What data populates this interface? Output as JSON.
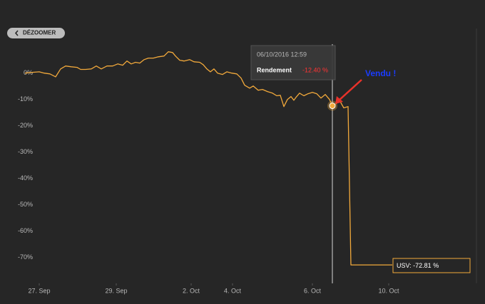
{
  "chart_data": {
    "type": "line",
    "button": "DÉZOOMER",
    "xlim": [
      0,
      126
    ],
    "ylim": [
      -79,
      11
    ],
    "xticks": [
      {
        "value": 4,
        "label": "27. Sep"
      },
      {
        "value": 25.6,
        "label": "29. Sep"
      },
      {
        "value": 46.6,
        "label": "2. Oct"
      },
      {
        "value": 58.2,
        "label": "4. Oct"
      },
      {
        "value": 80.6,
        "label": "6. Oct"
      },
      {
        "value": 102,
        "label": "10. Oct"
      }
    ],
    "yticks": [
      {
        "value": 0,
        "label": "0%"
      },
      {
        "value": -10,
        "label": "-10%"
      },
      {
        "value": -20,
        "label": "-20%"
      },
      {
        "value": -30,
        "label": "-30%"
      },
      {
        "value": -40,
        "label": "-40%"
      },
      {
        "value": -50,
        "label": "-50%"
      },
      {
        "value": -60,
        "label": "-60%"
      },
      {
        "value": -70,
        "label": "-70%"
      }
    ],
    "grid": false,
    "x": [
      0,
      2,
      4,
      5.4,
      7,
      8.6,
      10,
      11.4,
      13,
      14.6,
      15.6,
      17,
      18.6,
      20,
      21.4,
      23,
      24.6,
      26,
      27.4,
      28.6,
      29.8,
      31,
      32.2,
      33.4,
      34.6,
      36,
      37.4,
      39,
      40.2,
      41.4,
      42.2,
      43.4,
      44.6,
      46.2,
      47.4,
      49,
      50,
      51,
      52,
      53,
      54,
      55.4,
      56.6,
      58,
      59.4,
      60.6,
      61.6,
      63,
      64,
      65.4,
      66.6,
      68,
      69.4,
      70.6,
      71.6,
      72.6,
      73.6,
      74.6,
      75.4,
      76,
      77,
      78.2,
      79.4,
      80.6,
      81.8,
      83,
      84.2,
      85.4,
      86.2,
      87.4,
      88.4,
      89.4,
      90.6,
      91.4,
      103
    ],
    "series": [
      {
        "name": "USV",
        "color": "#f2a93b",
        "values": [
          0,
          0.3,
          0.5,
          0,
          -0.3,
          -1.4,
          1.6,
          2.7,
          2.4,
          2.2,
          1.4,
          1.4,
          1.6,
          2.7,
          1.6,
          2.7,
          2.7,
          3.5,
          3.0,
          4.6,
          3.5,
          4.1,
          3.8,
          5.1,
          5.7,
          5.7,
          6.2,
          6.5,
          8.1,
          7.8,
          6.5,
          4.9,
          4.6,
          5.1,
          4.3,
          4.1,
          3.2,
          1.6,
          0.5,
          1.6,
          0,
          -0.5,
          0.5,
          0,
          -0.3,
          -1.9,
          -4.6,
          -5.7,
          -4.9,
          -6.5,
          -6.2,
          -7.0,
          -7.6,
          -8.6,
          -8.4,
          -12.7,
          -10.0,
          -8.9,
          -10.3,
          -9.2,
          -7.6,
          -8.6,
          -7.8,
          -7.3,
          -7.8,
          -9.5,
          -8.1,
          -10.0,
          -12.4,
          -11.4,
          -10.8,
          -13.2,
          -12.7,
          -72.8,
          -72.8
        ]
      }
    ],
    "tooltip": {
      "x": 86.2,
      "date": "06/10/2016 12:59",
      "name": "Rendement",
      "value": -12.4,
      "value_label": "-12.40 %"
    },
    "annotations": [
      {
        "text": "Vendu !",
        "color": "#1a3cff"
      },
      {
        "text": "USV: -72.81 %"
      }
    ]
  }
}
